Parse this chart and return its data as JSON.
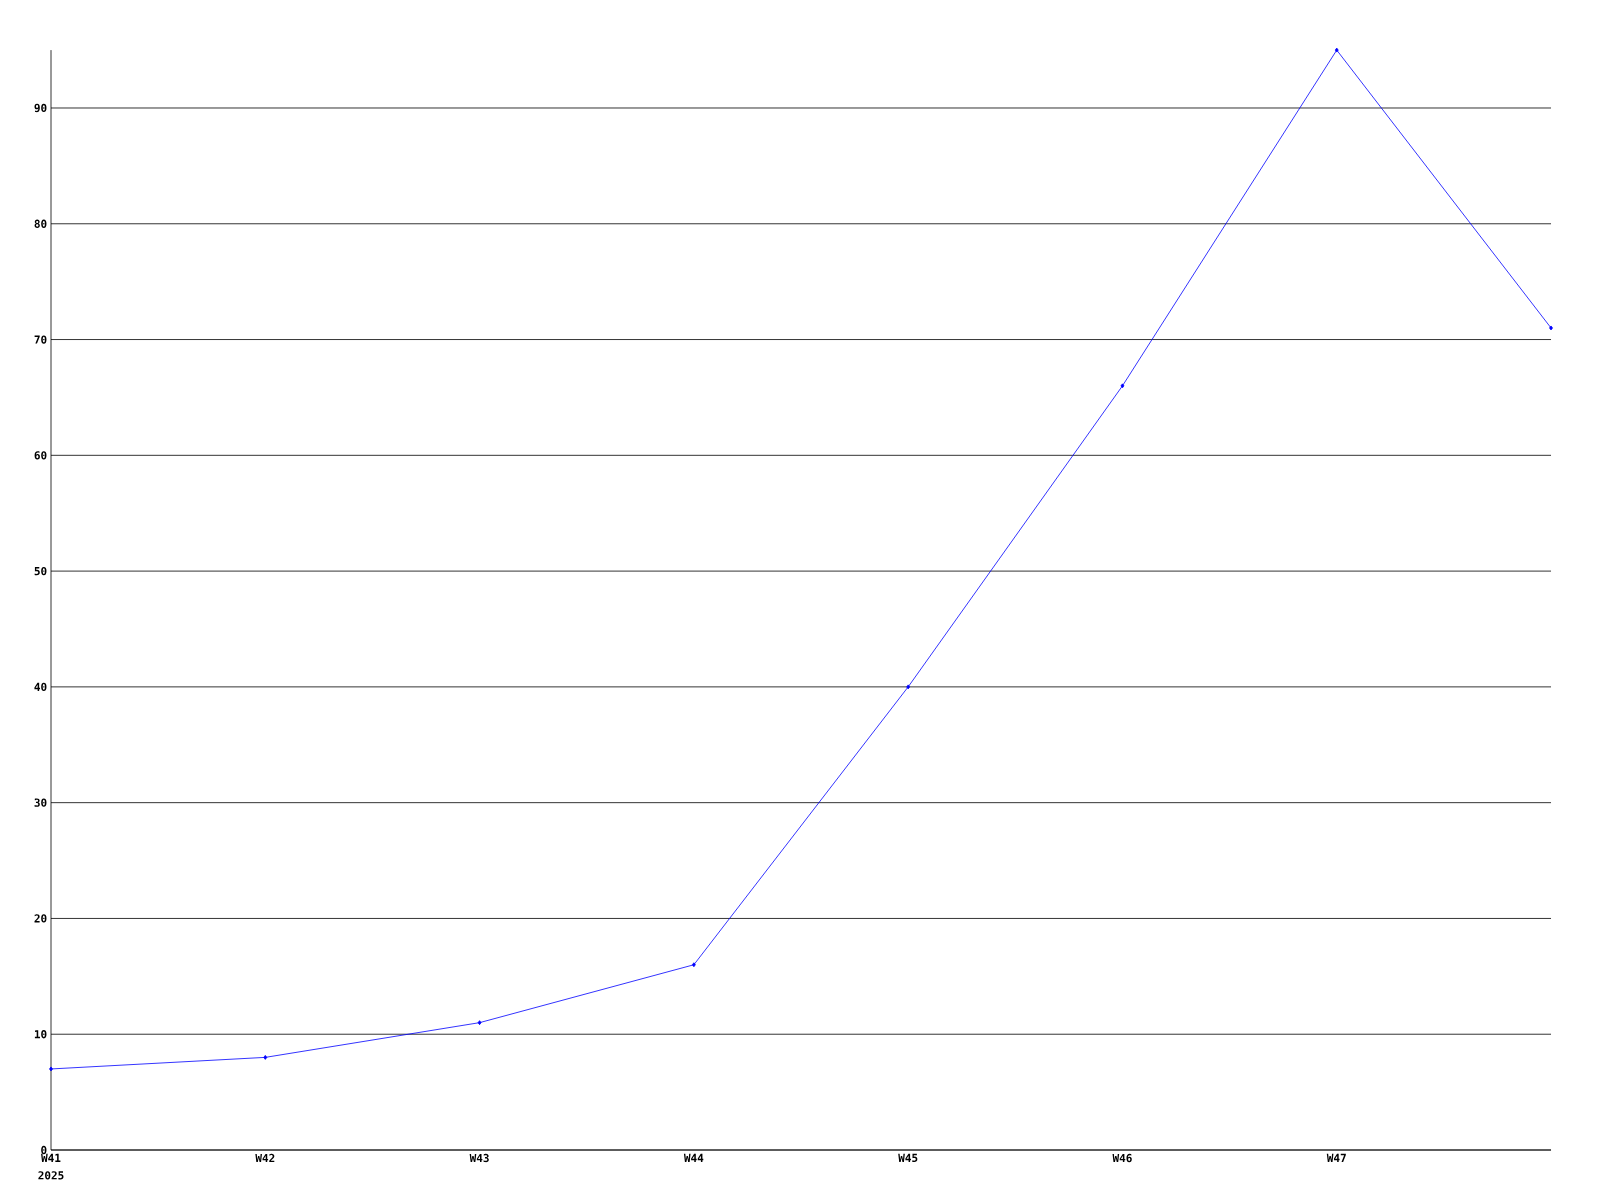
{
  "chart_data": {
    "type": "line",
    "categories": [
      "W41",
      "W42",
      "W43",
      "W44",
      "W45",
      "W46",
      "W47",
      null
    ],
    "series": [
      {
        "color": "#0000ff",
        "values": [
          7,
          8,
          11,
          16,
          40,
          66,
          95,
          71
        ]
      }
    ],
    "ylim": [
      0,
      95
    ],
    "yticks": [
      0,
      10,
      20,
      30,
      40,
      50,
      60,
      70,
      80,
      90
    ],
    "grid": "y",
    "marker": "diamond",
    "line_style": "solid",
    "annotations": [
      "2025"
    ]
  }
}
